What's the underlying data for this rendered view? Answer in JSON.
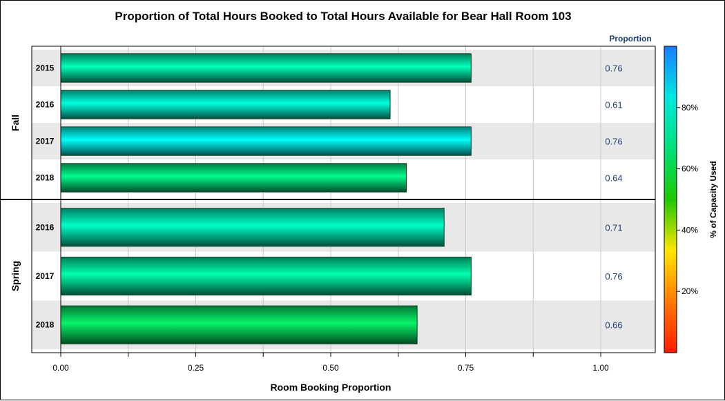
{
  "chart_data": {
    "type": "bar",
    "orientation": "horizontal",
    "title": "Proportion of Total Hours Booked to Total Hours Available for Bear Hall Room 103",
    "xlabel": "Room Booking Proportion",
    "xlim": [
      0,
      1.0
    ],
    "xticks": [
      "0.00",
      "0.25",
      "0.50",
      "0.75",
      "1.00"
    ],
    "value_column_header": "Proportion",
    "groups": [
      {
        "name": "Fall",
        "rows": [
          {
            "category": "2015",
            "value": 0.76,
            "label": "0.76",
            "capacity_pct": 74
          },
          {
            "category": "2016",
            "value": 0.61,
            "label": "0.61",
            "capacity_pct": 79
          },
          {
            "category": "2017",
            "value": 0.76,
            "label": "0.76",
            "capacity_pct": 83
          },
          {
            "category": "2018",
            "value": 0.64,
            "label": "0.64",
            "capacity_pct": 67
          }
        ]
      },
      {
        "name": "Spring",
        "rows": [
          {
            "category": "2016",
            "value": 0.71,
            "label": "0.71",
            "capacity_pct": 76
          },
          {
            "category": "2017",
            "value": 0.76,
            "label": "0.76",
            "capacity_pct": 72
          },
          {
            "category": "2018",
            "value": 0.66,
            "label": "0.66",
            "capacity_pct": 63
          }
        ]
      }
    ],
    "colorbar": {
      "label": "% of Capacity Used",
      "range": [
        0,
        100
      ],
      "ticks": [
        "20%",
        "40%",
        "60%",
        "80%"
      ],
      "stops": [
        "#ff1a00",
        "#ff7a00",
        "#ffe600",
        "#1ec800",
        "#00e07a",
        "#00e8e0",
        "#1a7cff"
      ]
    },
    "grid": true,
    "row_banding": true
  }
}
